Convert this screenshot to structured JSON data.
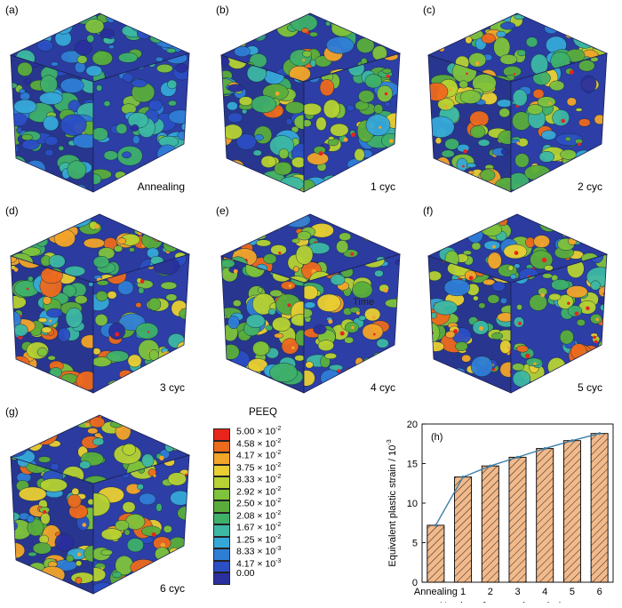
{
  "panels": [
    {
      "label": "(a)",
      "caption": "Annealing",
      "level": 0.15
    },
    {
      "label": "(b)",
      "caption": "1 cyc",
      "level": 0.55
    },
    {
      "label": "(c)",
      "caption": "2 cyc",
      "level": 0.6
    },
    {
      "label": "(d)",
      "caption": "3 cyc",
      "level": 0.68
    },
    {
      "label": "(e)",
      "caption": "4 cyc",
      "level": 0.72
    },
    {
      "label": "(f)",
      "caption": "5 cyc",
      "level": 0.76
    },
    {
      "label": "(g)",
      "caption": "6 cyc",
      "level": 0.8
    }
  ],
  "overlay_text": "Time",
  "legend": {
    "title": "PEEQ",
    "entries": [
      {
        "mant": "5.00 × 10",
        "exp": "-2",
        "color": "#e8241c"
      },
      {
        "mant": "4.58 × 10",
        "exp": "-2",
        "color": "#ee6a1d"
      },
      {
        "mant": "4.17 × 10",
        "exp": "-2",
        "color": "#f3a52a"
      },
      {
        "mant": "3.75 × 10",
        "exp": "-2",
        "color": "#e9cf32"
      },
      {
        "mant": "3.33 × 10",
        "exp": "-2",
        "color": "#b7d232"
      },
      {
        "mant": "2.92 × 10",
        "exp": "-2",
        "color": "#7fc23c"
      },
      {
        "mant": "2.50 × 10",
        "exp": "-2",
        "color": "#5aad3c"
      },
      {
        "mant": "2.08 × 10",
        "exp": "-2",
        "color": "#3fb06a"
      },
      {
        "mant": "1.67 × 10",
        "exp": "-2",
        "color": "#3db8a4"
      },
      {
        "mant": "1.25 × 10",
        "exp": "-2",
        "color": "#36a8d8"
      },
      {
        "mant": "8.33 × 10",
        "exp": "-3",
        "color": "#2f7ed6"
      },
      {
        "mant": "4.17 × 10",
        "exp": "-3",
        "color": "#2c4fc4"
      },
      {
        "mant": "0.00",
        "exp": "",
        "color": "#2a2f9e"
      }
    ]
  },
  "chart_data": {
    "type": "bar",
    "panel_label": "(h)",
    "categories": [
      "Annealing",
      "1",
      "2",
      "3",
      "4",
      "5",
      "6"
    ],
    "values": [
      7.2,
      13.3,
      14.7,
      15.8,
      16.9,
      17.9,
      18.8
    ],
    "line_values": [
      7.2,
      13.3,
      14.7,
      15.8,
      16.9,
      17.9,
      18.8
    ],
    "xlabel": "Number of cryogenic cycle / cyc",
    "ylabel": "Equivalent plastic strain / 10",
    "ylabel_exp": "-3",
    "ylim": [
      0,
      20
    ],
    "yticks": [
      0,
      5,
      10,
      15,
      20
    ],
    "bar_color": "#f2b98a",
    "line_color": "#3e7fa8"
  }
}
